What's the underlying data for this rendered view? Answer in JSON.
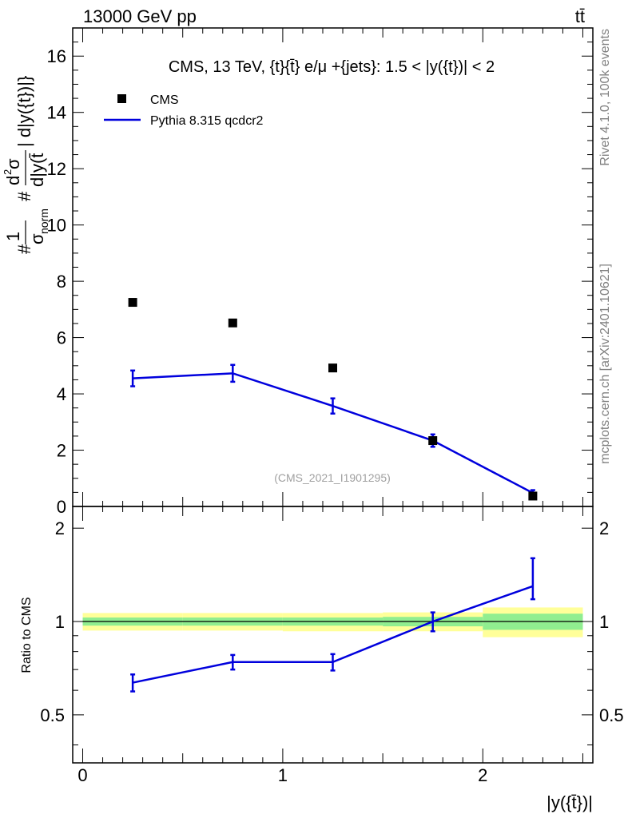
{
  "header": {
    "left_label": "13000 GeV pp",
    "right_label": "tt̄"
  },
  "side_labels": {
    "rivet": "Rivet 4.1.0,  100k events",
    "mcplots": "mcplots.cern.ch [arXiv:2401.10621]"
  },
  "chart_data": [
    {
      "type": "scatter",
      "panel": "main",
      "title": "CMS, 13 TeV, {t}{t̄} e/μ +{jets}: 1.5 < |y({t})| < 2",
      "ylabel": "#1/σnorm #d²σ/d|y({t})| d|y({t̄})|",
      "ylabel_fraction": {
        "prefix1": "#",
        "num1": "1",
        "den1": "σ",
        "den1_sub": "norm",
        "prefix2": "#",
        "num2": "d",
        "num2_sup": "2",
        "num2_tail": "σ",
        "den2": "d|y(t̄",
        "suffix": "| d|y({t})|}"
      },
      "xlim": [
        -0.05,
        2.55
      ],
      "ylim": [
        0,
        17
      ],
      "y_ticks": [
        0,
        2,
        4,
        6,
        8,
        10,
        12,
        14,
        16
      ],
      "y_tick_labels": [
        "0",
        "2",
        "4",
        "6",
        "8",
        "10",
        "12",
        "14",
        "16"
      ],
      "watermark": "(CMS_2021_I1901295)",
      "legend_position": "top-left",
      "series": [
        {
          "name": "CMS",
          "style": "markers",
          "color": "#000000",
          "x": [
            0.25,
            0.75,
            1.25,
            1.75,
            2.25
          ],
          "y": [
            7.25,
            6.52,
            4.92,
            2.34,
            0.37
          ],
          "yerr": [
            0.08,
            0.08,
            0.07,
            0.05,
            0.03
          ]
        },
        {
          "name": "Pythia 8.315 qcdcr2",
          "style": "line",
          "color": "#0000dd",
          "x": [
            0.25,
            0.75,
            1.25,
            1.75,
            2.25
          ],
          "y": [
            4.55,
            4.73,
            3.57,
            2.34,
            0.48
          ],
          "yerr": [
            0.28,
            0.3,
            0.27,
            0.22,
            0.1
          ]
        }
      ]
    },
    {
      "type": "line",
      "panel": "ratio",
      "ylabel": "Ratio to CMS",
      "xlabel": "|y({t̄})|",
      "xlim": [
        -0.05,
        2.55
      ],
      "ylim": [
        0.35,
        2.35
      ],
      "x_ticks": [
        0,
        1,
        2
      ],
      "x_tick_labels": [
        "0",
        "1",
        "2"
      ],
      "y_ticks": [
        0.5,
        1,
        2
      ],
      "y_tick_labels": [
        "0.5",
        "1",
        "2"
      ],
      "bins": [
        [
          0,
          0.5
        ],
        [
          0.5,
          1.0
        ],
        [
          1.0,
          1.5
        ],
        [
          1.5,
          2.0
        ],
        [
          2.0,
          2.5
        ]
      ],
      "band_inner": [
        [
          0.97,
          1.03
        ],
        [
          0.97,
          1.03
        ],
        [
          0.97,
          1.03
        ],
        [
          0.965,
          1.035
        ],
        [
          0.94,
          1.06
        ]
      ],
      "band_outer": [
        [
          0.935,
          1.065
        ],
        [
          0.935,
          1.065
        ],
        [
          0.93,
          1.065
        ],
        [
          0.93,
          1.07
        ],
        [
          0.89,
          1.11
        ]
      ],
      "band_colors": {
        "inner": "#90ee90",
        "outer": "#ffff99"
      },
      "reference": 1,
      "series": [
        {
          "name": "Pythia 8.315 qcdcr2",
          "color": "#0000dd",
          "x": [
            0.25,
            0.75,
            1.25,
            1.75,
            2.25
          ],
          "y": [
            0.635,
            0.74,
            0.74,
            1.0,
            1.3
          ],
          "yerr_low": [
            0.04,
            0.04,
            0.045,
            0.07,
            0.12
          ],
          "yerr_high": [
            0.04,
            0.04,
            0.045,
            0.07,
            0.3
          ]
        }
      ]
    }
  ]
}
